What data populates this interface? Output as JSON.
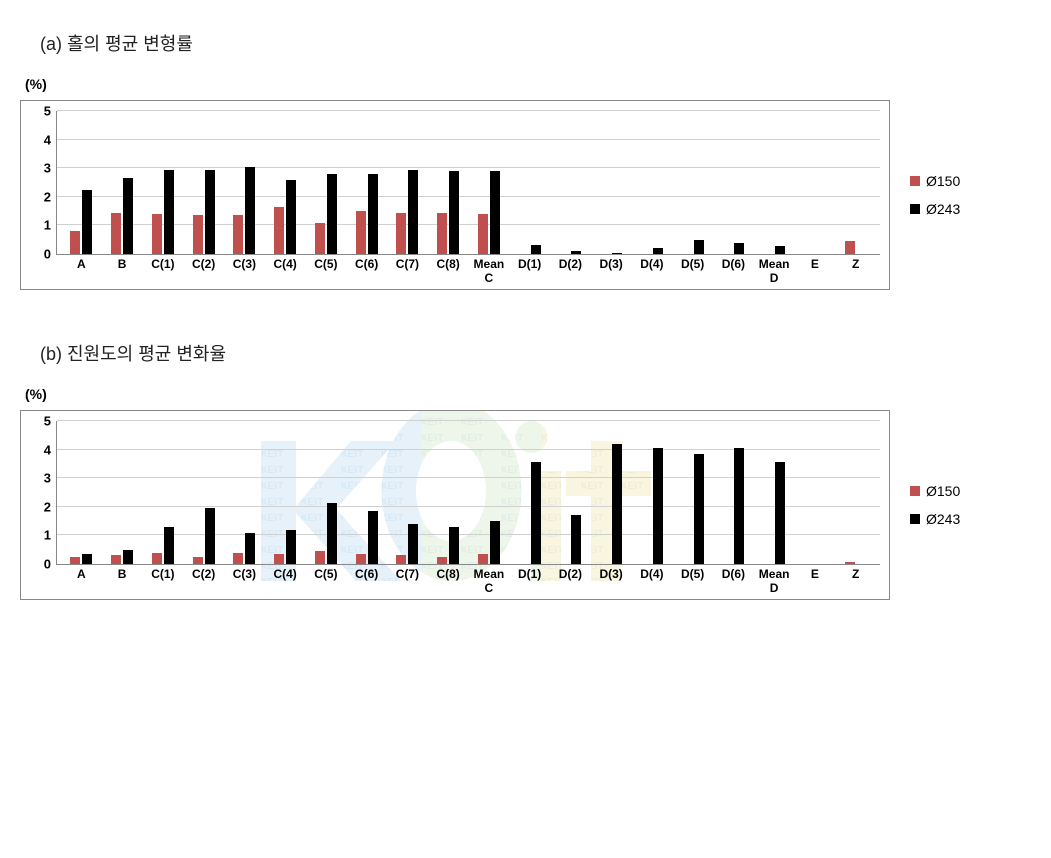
{
  "colors": {
    "series1": "#c0504d",
    "series2": "#000000",
    "grid": "#d0d0d0",
    "border": "#888888",
    "background": "#ffffff",
    "wm_blue": "#7db7e4",
    "wm_green": "#a7d08c",
    "wm_yellow": "#e3cf57"
  },
  "chart_a": {
    "title": "(a) 홀의 평균 변형률",
    "ylabel": "(%)",
    "ylim": [
      0,
      5
    ],
    "ytick_step": 1,
    "legend": [
      {
        "label": "Ø150",
        "color_key": "series1"
      },
      {
        "label": "Ø243",
        "color_key": "series2"
      }
    ],
    "categories": [
      {
        "label": "A",
        "v1": 0.8,
        "v2": 2.25
      },
      {
        "label": "B",
        "v1": 1.45,
        "v2": 2.65
      },
      {
        "label": "C(1)",
        "v1": 1.4,
        "v2": 2.95
      },
      {
        "label": "C(2)",
        "v1": 1.35,
        "v2": 2.95
      },
      {
        "label": "C(3)",
        "v1": 1.35,
        "v2": 3.05
      },
      {
        "label": "C(4)",
        "v1": 1.65,
        "v2": 2.6
      },
      {
        "label": "C(5)",
        "v1": 1.1,
        "v2": 2.8
      },
      {
        "label": "C(6)",
        "v1": 1.5,
        "v2": 2.8
      },
      {
        "label": "C(7)",
        "v1": 1.45,
        "v2": 2.95
      },
      {
        "label": "C(8)",
        "v1": 1.45,
        "v2": 2.9
      },
      {
        "label": "Mean\nC",
        "v1": 1.4,
        "v2": 2.9
      },
      {
        "label": "D(1)",
        "v1": null,
        "v2": 0.3
      },
      {
        "label": "D(2)",
        "v1": null,
        "v2": 0.1
      },
      {
        "label": "D(3)",
        "v1": null,
        "v2": 0.02
      },
      {
        "label": "D(4)",
        "v1": null,
        "v2": 0.2
      },
      {
        "label": "D(5)",
        "v1": null,
        "v2": 0.5
      },
      {
        "label": "D(6)",
        "v1": null,
        "v2": 0.4
      },
      {
        "label": "Mean\nD",
        "v1": null,
        "v2": 0.27
      },
      {
        "label": "E",
        "v1": null,
        "v2": null
      },
      {
        "label": "Z",
        "v1": 0.45,
        "v2": null
      }
    ]
  },
  "chart_b": {
    "title": "(b) 진원도의 평균 변화율",
    "ylabel": "(%)",
    "ylim": [
      0,
      5
    ],
    "ytick_step": 1,
    "legend": [
      {
        "label": "Ø150",
        "color_key": "series1"
      },
      {
        "label": "Ø243",
        "color_key": "series2"
      }
    ],
    "categories": [
      {
        "label": "A",
        "v1": 0.25,
        "v2": 0.35
      },
      {
        "label": "B",
        "v1": 0.3,
        "v2": 0.5
      },
      {
        "label": "C(1)",
        "v1": 0.4,
        "v2": 1.3
      },
      {
        "label": "C(2)",
        "v1": 0.25,
        "v2": 1.95
      },
      {
        "label": "C(3)",
        "v1": 0.4,
        "v2": 1.1
      },
      {
        "label": "C(4)",
        "v1": 0.35,
        "v2": 1.2
      },
      {
        "label": "C(5)",
        "v1": 0.45,
        "v2": 2.15
      },
      {
        "label": "C(6)",
        "v1": 0.35,
        "v2": 1.85
      },
      {
        "label": "C(7)",
        "v1": 0.3,
        "v2": 1.4
      },
      {
        "label": "C(8)",
        "v1": 0.25,
        "v2": 1.3
      },
      {
        "label": "Mean\nC",
        "v1": 0.35,
        "v2": 1.5
      },
      {
        "label": "D(1)",
        "v1": null,
        "v2": 3.55
      },
      {
        "label": "D(2)",
        "v1": null,
        "v2": 1.7
      },
      {
        "label": "D(3)",
        "v1": null,
        "v2": 4.2
      },
      {
        "label": "D(4)",
        "v1": null,
        "v2": 4.05
      },
      {
        "label": "D(5)",
        "v1": null,
        "v2": 3.85
      },
      {
        "label": "D(6)",
        "v1": null,
        "v2": 4.05
      },
      {
        "label": "Mean\nD",
        "v1": null,
        "v2": 3.55
      },
      {
        "label": "E",
        "v1": null,
        "v2": null
      },
      {
        "label": "Z",
        "v1": 0.08,
        "v2": null
      }
    ]
  }
}
